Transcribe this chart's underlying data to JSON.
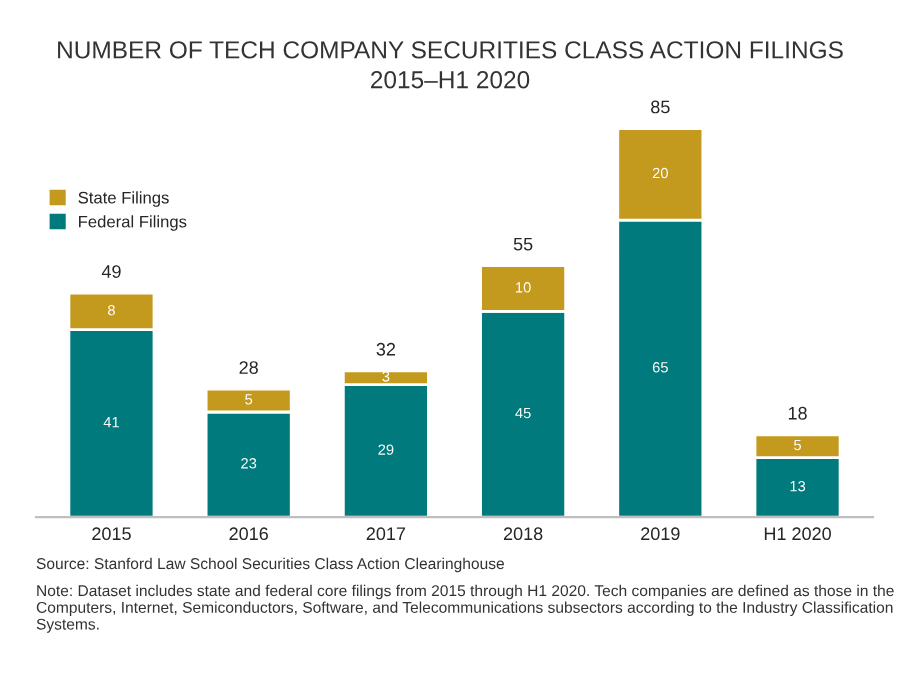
{
  "chart_data": {
    "type": "bar",
    "title": "NUMBER OF TECH COMPANY SECURITIES CLASS ACTION FILINGS\n2015–H1 2020",
    "categories": [
      "2015",
      "2016",
      "2017",
      "2018",
      "2019",
      "H1 2020"
    ],
    "stacked": true,
    "series": [
      {
        "name": "Federal Filings",
        "color": "#007a7c",
        "values": [
          41,
          23,
          29,
          45,
          65,
          13
        ]
      },
      {
        "name": "State Filings",
        "color": "#c49a1e",
        "values": [
          8,
          5,
          3,
          10,
          20,
          5
        ]
      }
    ],
    "data_labels": true,
    "totals": [
      "49",
      "28",
      "32",
      "55",
      "85",
      "18"
    ],
    "legend": "top left",
    "annotations": [
      "Source: Stanford Law School Securities Class Action Clearinghouse",
      "Note: Dataset includes state and federal core filings from 2015 through H1 2020. Tech companies are defined as those in the Computers, Internet, Semiconductors, Software, and Telecommunications subsectors according to the Industry Classification Systems."
    ]
  }
}
